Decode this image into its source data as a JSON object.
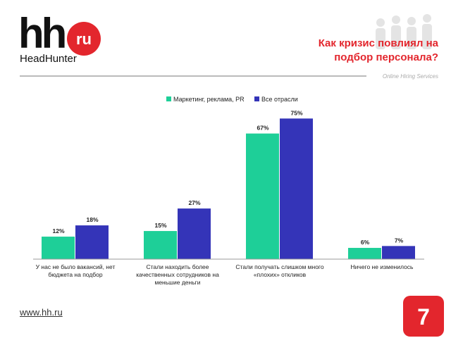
{
  "logo": {
    "mark": "hh",
    "badge": "ru",
    "name": "HeadHunter"
  },
  "tagline": "Online Hiring Services",
  "footer": {
    "url": "www.hh.ru",
    "page": "7"
  },
  "chart_data": {
    "type": "bar",
    "title": "Как кризис повлиял на подбор персонала?",
    "categories": [
      "У нас не было вакансий, нет бюджета на подбор",
      "Стали находить более качественных сотрудников на меньшие деньги",
      "Стали получать слишком много «плохих» откликов",
      "Ничего не изменилось"
    ],
    "series": [
      {
        "name": "Маркетинг, реклама, PR",
        "color": "#1ecf98",
        "values": [
          12,
          15,
          67,
          6
        ],
        "value_labels": [
          "12%",
          "15%",
          "67%",
          "6%"
        ]
      },
      {
        "name": "Все отрасли",
        "color": "#3434b8",
        "values": [
          18,
          27,
          75,
          7
        ],
        "value_labels": [
          "18%",
          "27%",
          "75%",
          "7%"
        ]
      }
    ],
    "ylim": [
      0,
      80
    ],
    "legend": "top"
  }
}
